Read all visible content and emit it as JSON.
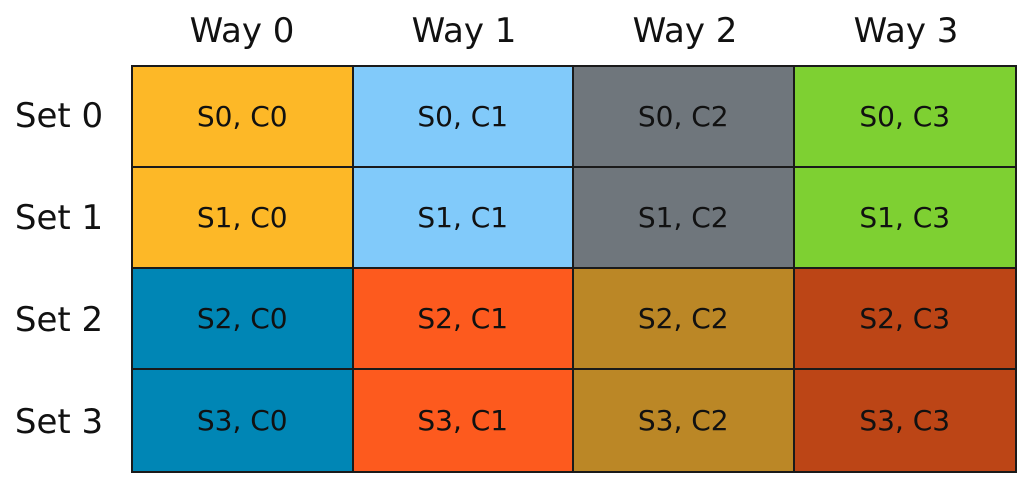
{
  "ways": [
    "Way 0",
    "Way 1",
    "Way 2",
    "Way 3"
  ],
  "sets": [
    "Set 0",
    "Set 1",
    "Set 2",
    "Set 3"
  ],
  "cells": [
    [
      {
        "label": "S0, C0",
        "color": "#FDB827"
      },
      {
        "label": "S0, C1",
        "color": "#81CAFA"
      },
      {
        "label": "S0, C2",
        "color": "#6F767C"
      },
      {
        "label": "S0, C3",
        "color": "#7ED032"
      }
    ],
    [
      {
        "label": "S1, C0",
        "color": "#FDB827"
      },
      {
        "label": "S1, C1",
        "color": "#81CAFA"
      },
      {
        "label": "S1, C2",
        "color": "#6F767C"
      },
      {
        "label": "S1, C3",
        "color": "#7ED032"
      }
    ],
    [
      {
        "label": "S2, C0",
        "color": "#0086B5"
      },
      {
        "label": "S2, C1",
        "color": "#FD5A1E"
      },
      {
        "label": "S2, C2",
        "color": "#BB8726"
      },
      {
        "label": "S2, C3",
        "color": "#BC4516"
      }
    ],
    [
      {
        "label": "S3, C0",
        "color": "#0086B5"
      },
      {
        "label": "S3, C1",
        "color": "#FD5A1E"
      },
      {
        "label": "S3, C2",
        "color": "#BB8726"
      },
      {
        "label": "S3, C3",
        "color": "#BC4516"
      }
    ]
  ]
}
